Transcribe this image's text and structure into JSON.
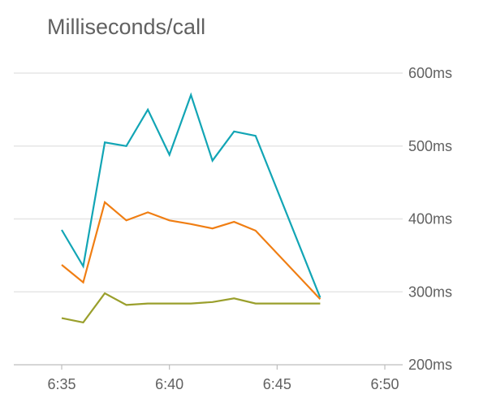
{
  "chart_data": {
    "type": "line",
    "title": "Milliseconds/call",
    "xlabel": "",
    "ylabel": "",
    "x_ticks": [
      "6:35",
      "6:40",
      "6:45",
      "6:50"
    ],
    "x_tick_values": [
      35,
      40,
      45,
      50
    ],
    "y_ticks": [
      "200ms",
      "300ms",
      "400ms",
      "500ms",
      "600ms"
    ],
    "y_tick_values": [
      200,
      300,
      400,
      500,
      600
    ],
    "xlim": [
      33.5,
      50
    ],
    "ylim": [
      200,
      600
    ],
    "grid": true,
    "x_unit": "minutes past 6:00",
    "series": [
      {
        "color": "#12a5b5",
        "x": [
          35,
          36,
          37,
          38,
          39,
          40,
          41,
          42,
          43,
          44,
          47
        ],
        "values": [
          385,
          335,
          505,
          500,
          550,
          488,
          570,
          480,
          520,
          514,
          292
        ]
      },
      {
        "color": "#f07e13",
        "x": [
          35,
          36,
          37,
          38,
          39,
          40,
          41,
          42,
          43,
          44,
          47
        ],
        "values": [
          337,
          313,
          423,
          398,
          409,
          398,
          393,
          387,
          396,
          384,
          290
        ]
      },
      {
        "color": "#9a9f2c",
        "x": [
          35,
          36,
          37,
          38,
          39,
          40,
          41,
          42,
          43,
          44,
          47
        ],
        "values": [
          264,
          258,
          298,
          282,
          284,
          284,
          284,
          286,
          291,
          284,
          284
        ]
      }
    ]
  }
}
